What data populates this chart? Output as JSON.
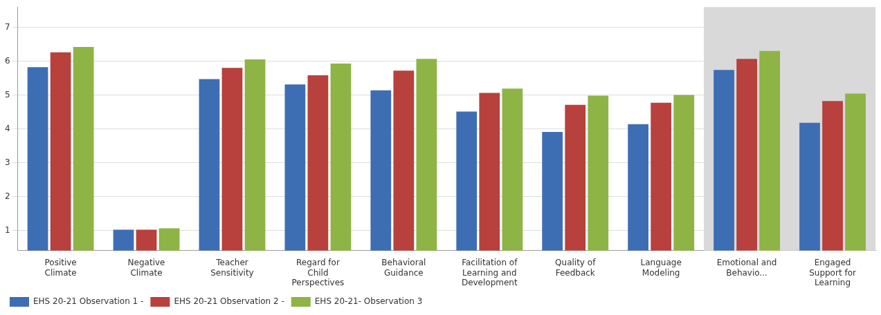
{
  "chart_data": {
    "type": "bar",
    "categories": [
      "Positive Climate",
      "Negative Climate",
      "Teacher Sensitivity",
      "Regard for Child Perspectives",
      "Behavioral Guidance",
      "Facilitation of Learning and Development",
      "Quality of Feedback",
      "Language Modeling",
      "Emotional and Behavio...",
      "Engaged Support for Learning"
    ],
    "series": [
      {
        "name": "EHS 20-21 Observation 1 -",
        "color": "#3d6eb4",
        "values": [
          5.82,
          1.02,
          5.47,
          5.31,
          5.14,
          4.51,
          3.91,
          4.14,
          5.74,
          4.18
        ]
      },
      {
        "name": "EHS 20-21 Observation 2 -",
        "color": "#b8403d",
        "values": [
          6.26,
          1.02,
          5.8,
          5.58,
          5.72,
          5.06,
          4.71,
          4.77,
          6.07,
          4.82
        ]
      },
      {
        "name": "EHS 20-21- Observation 3",
        "color": "#8db445",
        "values": [
          6.42,
          1.06,
          6.05,
          5.93,
          6.07,
          5.19,
          4.98,
          5.0,
          6.3,
          5.04
        ]
      }
    ],
    "ylim": [
      0.4,
      7.6
    ],
    "yticks": [
      1,
      2,
      3,
      4,
      5,
      6,
      7
    ],
    "grid": "y",
    "legend": "bottom left",
    "bands": [
      {
        "axis": "x",
        "from": "Emotional and Behavio...",
        "to": "Engaged Support for Learning",
        "color": "#d9d9d9"
      }
    ]
  }
}
